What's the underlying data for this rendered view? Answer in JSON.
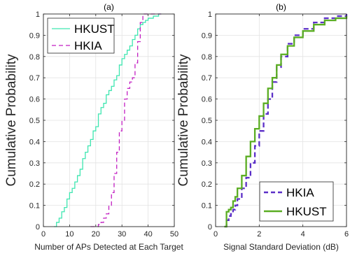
{
  "chart_data": [
    {
      "type": "line",
      "title": "(a)",
      "xlabel": "Number of APs Detected at Each Target",
      "ylabel": "Cumulative Probability",
      "xlim": [
        0,
        50
      ],
      "ylim": [
        0,
        1
      ],
      "xticks": [
        "0",
        "10",
        "20",
        "30",
        "40",
        "50"
      ],
      "yticks": [
        "0",
        "0.1",
        "0.2",
        "0.3",
        "0.4",
        "0.5",
        "0.6",
        "0.7",
        "0.8",
        "0.9",
        "1"
      ],
      "grid": true,
      "legend": "top-left",
      "series": [
        {
          "name": "HKUST",
          "color": "#3ee6b0",
          "style": "solid",
          "x": [
            4,
            5,
            6,
            7,
            8,
            9,
            10,
            11,
            12,
            13,
            14,
            15,
            16,
            17,
            18,
            19,
            20,
            21,
            22,
            23,
            24,
            25,
            26,
            27,
            28,
            29,
            30,
            31,
            32,
            33,
            34,
            35,
            36,
            37,
            38,
            39,
            40,
            42,
            44,
            45
          ],
          "y": [
            0.0,
            0.02,
            0.04,
            0.07,
            0.09,
            0.13,
            0.16,
            0.18,
            0.21,
            0.24,
            0.27,
            0.32,
            0.35,
            0.38,
            0.41,
            0.45,
            0.47,
            0.53,
            0.56,
            0.58,
            0.62,
            0.64,
            0.66,
            0.69,
            0.71,
            0.76,
            0.79,
            0.81,
            0.83,
            0.85,
            0.88,
            0.9,
            0.93,
            0.95,
            0.96,
            0.97,
            0.98,
            0.99,
            1.0,
            1.0
          ]
        },
        {
          "name": "HKIA",
          "color": "#c21fc2",
          "style": "dashed",
          "x": [
            18,
            20,
            21,
            22,
            23,
            24,
            25,
            26,
            27,
            28,
            29,
            30,
            31,
            32,
            33,
            34,
            35,
            36,
            37,
            38,
            39,
            41,
            43,
            45
          ],
          "y": [
            0.0,
            0.0,
            0.01,
            0.02,
            0.04,
            0.06,
            0.1,
            0.16,
            0.25,
            0.35,
            0.45,
            0.5,
            0.6,
            0.65,
            0.68,
            0.7,
            0.77,
            0.87,
            0.96,
            1.0,
            1.0,
            1.0,
            1.0,
            1.0
          ]
        }
      ]
    },
    {
      "type": "line",
      "title": "(b)",
      "xlabel": "Signal Standard Deviation (dB)",
      "ylabel": "Cumulative Probability",
      "xlim": [
        0,
        6
      ],
      "ylim": [
        0,
        1
      ],
      "xticks": [
        "0",
        "2",
        "4",
        "6"
      ],
      "yticks": [
        "0",
        "0.1",
        "0.2",
        "0.3",
        "0.4",
        "0.5",
        "0.6",
        "0.7",
        "0.8",
        "0.9",
        "1"
      ],
      "grid": true,
      "legend": "bottom-right",
      "series": [
        {
          "name": "HKIA",
          "color": "#5b2fc7",
          "style": "dashed",
          "x": [
            0.4,
            0.5,
            0.6,
            0.7,
            0.8,
            0.9,
            1.0,
            1.2,
            1.4,
            1.6,
            1.8,
            2.0,
            2.2,
            2.4,
            2.6,
            2.8,
            3.0,
            3.3,
            3.6,
            4.0,
            4.5,
            5.0,
            5.5,
            6.0
          ],
          "y": [
            0.0,
            0.03,
            0.05,
            0.06,
            0.08,
            0.1,
            0.13,
            0.18,
            0.23,
            0.3,
            0.38,
            0.45,
            0.53,
            0.6,
            0.68,
            0.75,
            0.8,
            0.86,
            0.9,
            0.93,
            0.96,
            0.98,
            0.99,
            1.0
          ]
        },
        {
          "name": "HKUST",
          "color": "#5aad22",
          "style": "solid",
          "x": [
            0.4,
            0.5,
            0.6,
            0.7,
            0.8,
            0.9,
            1.0,
            1.2,
            1.4,
            1.6,
            1.8,
            2.0,
            2.2,
            2.4,
            2.6,
            2.8,
            3.0,
            3.3,
            3.6,
            4.0,
            4.5,
            5.0,
            5.5,
            6.0
          ],
          "y": [
            0.0,
            0.07,
            0.08,
            0.09,
            0.12,
            0.14,
            0.18,
            0.24,
            0.33,
            0.4,
            0.46,
            0.52,
            0.58,
            0.65,
            0.7,
            0.76,
            0.81,
            0.85,
            0.89,
            0.92,
            0.95,
            0.97,
            0.98,
            0.99
          ]
        }
      ]
    }
  ]
}
